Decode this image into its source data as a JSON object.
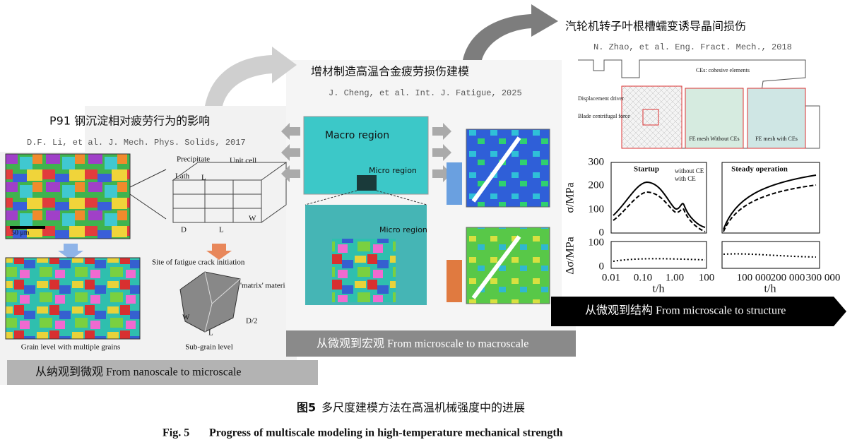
{
  "panels": [
    {
      "title": "P91 钢沉淀相对疲劳行为的影响",
      "reference": "D.F. Li, et al. J. Mech. Phys. Solids, 2017",
      "caption": "从纳观到微观 From nanoscale to microscale",
      "labels": [
        "Precipitate",
        "Unit cell",
        "Lath",
        "L",
        "W",
        "D",
        "L",
        "50 μm",
        "Site of fatigue crack initiation",
        "'matrix' materi",
        "W",
        "L",
        "D/2",
        "Grain level with multiple grains",
        "Sub-grain level"
      ]
    },
    {
      "title": "增材制造高温合金疲劳损伤建模",
      "reference": "J. Cheng, et al. Int. J. Fatigue, 2025",
      "caption": "从微观到宏观 From microscale to macroscale",
      "labels": [
        "Macro region",
        "Micro region",
        "Micro region"
      ]
    },
    {
      "title": "汽轮机转子叶根槽蠕变诱导晶间损伤",
      "reference": "N. Zhao, et al. Eng. Fract. Mech., 2018",
      "caption": "从微观到结构 From microscale to structure",
      "labels": [
        "CEs: cohesive elements",
        "Displacement driver",
        "Blade centrifugal force",
        "FE mesh Without CEs",
        "FE mesh with CEs"
      ],
      "plot": {
        "panel_titles": [
          "Startup",
          "Steady operation"
        ],
        "legend": [
          "without CE",
          "with CE"
        ],
        "y_label": "σ/MPa",
        "y2_label": "Δσ/MPa",
        "x_label": "t/h",
        "yticks": [
          "0",
          "100",
          "200",
          "300"
        ],
        "y2ticks": [
          "0",
          "100"
        ],
        "xticks_left": [
          "0.01",
          "0.10",
          "1.00",
          "100"
        ],
        "xticks_right": [
          "100 000",
          "200 000",
          "300 000"
        ]
      }
    }
  ],
  "figure_caption": {
    "zh_label": "图5",
    "zh_text": "多尺度建模方法在高温机械强度中的进展",
    "en_label": "Fig. 5",
    "en_text": "Progress of multiscale modeling in high-temperature mechanical strength"
  }
}
